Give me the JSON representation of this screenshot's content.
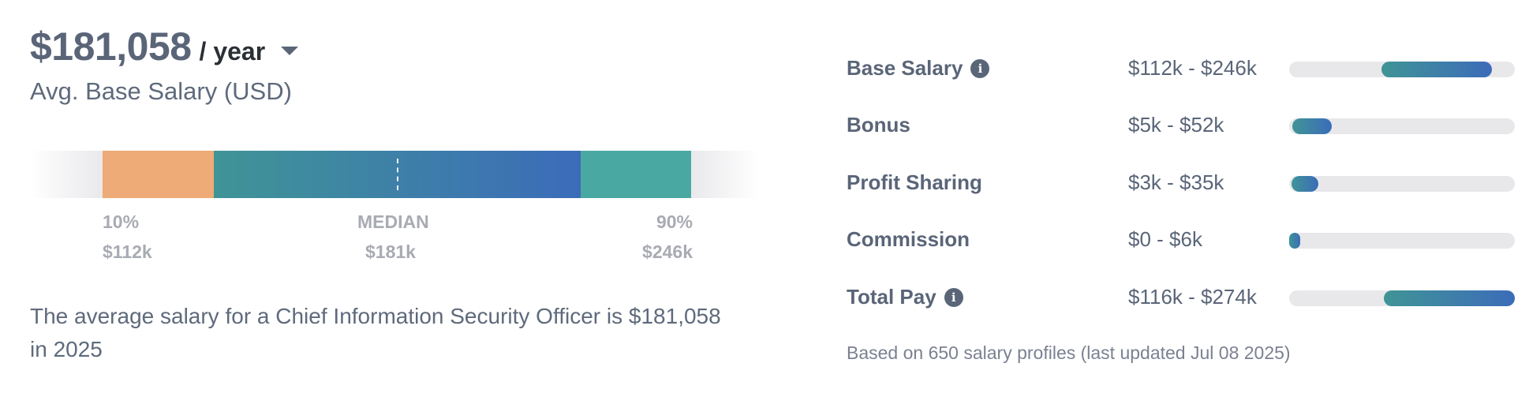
{
  "headline": {
    "amount": "$181,058",
    "period": "/ year"
  },
  "subtitle": "Avg. Base Salary (USD)",
  "percentiles": {
    "low": {
      "label": "10%",
      "value": "$112k"
    },
    "median": {
      "label": "MEDIAN",
      "value": "$181k"
    },
    "high": {
      "label": "90%",
      "value": "$246k"
    }
  },
  "summary": "The average salary for a Chief Information Security Officer is $181,058 in 2025",
  "components": [
    {
      "name": "Base Salary",
      "range": "$112k - $246k",
      "has_info": true,
      "fill_start": 0.41,
      "fill_end": 0.9
    },
    {
      "name": "Bonus",
      "range": "$5k - $52k",
      "has_info": false,
      "fill_start": 0.015,
      "fill_end": 0.19
    },
    {
      "name": "Profit Sharing",
      "range": "$3k - $35k",
      "has_info": false,
      "fill_start": 0.01,
      "fill_end": 0.13
    },
    {
      "name": "Commission",
      "range": "$0 - $6k",
      "has_info": false,
      "fill_start": 0.0,
      "fill_end": 0.05
    },
    {
      "name": "Total Pay",
      "range": "$116k - $274k",
      "has_info": true,
      "fill_start": 0.42,
      "fill_end": 1.0
    }
  ],
  "footnote": "Based on 650 salary profiles (last updated Jul 08 2025)",
  "colors": {
    "accent_start": "#3f9496",
    "accent_end": "#3c6cb9",
    "low_segment": "#eeaa77",
    "high_segment": "#4aa8a2"
  },
  "icons": {
    "period_dropdown": "caret-down-icon",
    "info": "info-icon"
  }
}
